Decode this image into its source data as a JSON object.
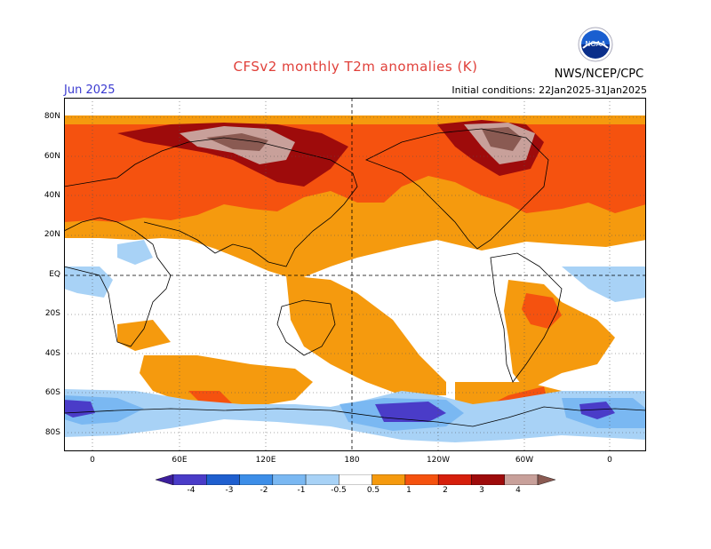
{
  "title": "CFSv2 monthly T2m anomalies (K)",
  "valid_month": "Jun 2025",
  "initial_conditions": "Initial conditions: 22Jan2025-31Jan2025",
  "agency": "NWS/NCEP/CPC",
  "logo_text": "NOAA",
  "colors": {
    "title": "#e0403a",
    "valid": "#3a3ad0"
  },
  "lat_labels": [
    "80N",
    "60N",
    "40N",
    "20N",
    "EQ",
    "20S",
    "40S",
    "60S",
    "80S"
  ],
  "lon_labels": [
    "0",
    "60E",
    "120E",
    "180",
    "120W",
    "60W",
    "0"
  ],
  "colorbar": {
    "labels": [
      "-4",
      "-3",
      "-2",
      "-1",
      "-0.5",
      "0.5",
      "1",
      "2",
      "3",
      "4"
    ],
    "colors": [
      "#3c1e9c",
      "#4a3cc8",
      "#1f5fcf",
      "#3d8ee8",
      "#7ab8f2",
      "#a8d2f6",
      "#ffffff",
      "#f59a0e",
      "#f5520f",
      "#d61f0c",
      "#9e0b0b",
      "#c8a09a",
      "#8a5a52"
    ]
  }
}
